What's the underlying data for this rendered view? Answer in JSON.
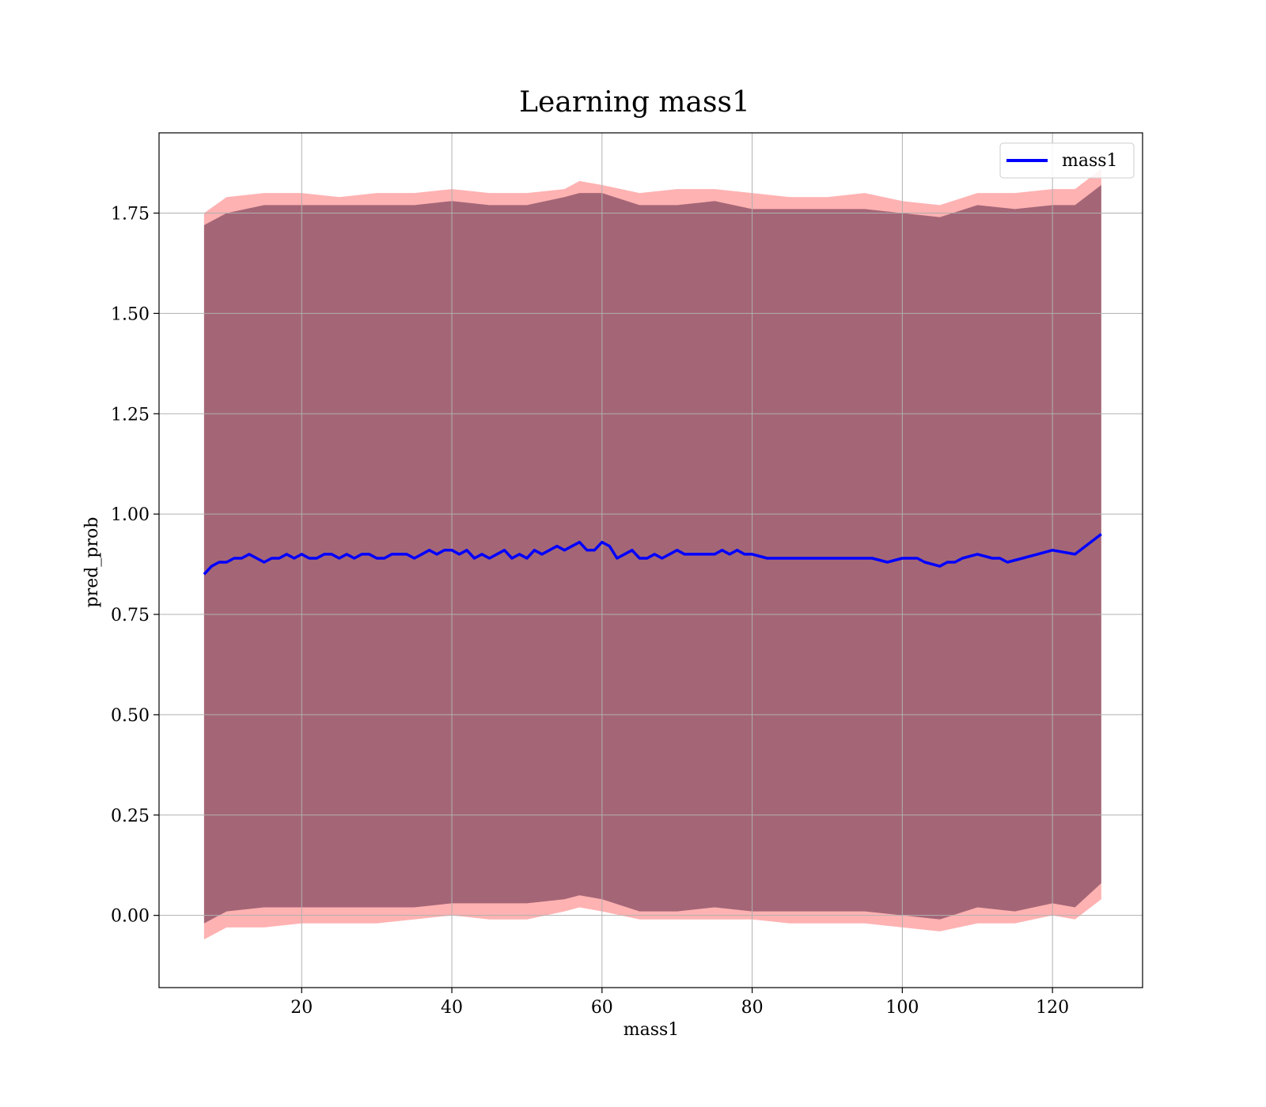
{
  "chart_data": {
    "type": "line",
    "title": "Learning mass1",
    "xlabel": "mass1",
    "ylabel": "pred_prob",
    "xlim": [
      1,
      132
    ],
    "ylim": [
      -0.18,
      1.95
    ],
    "xticks": [
      20,
      40,
      60,
      80,
      100,
      120
    ],
    "xtick_labels": [
      "20",
      "40",
      "60",
      "80",
      "100",
      "120"
    ],
    "yticks": [
      0.0,
      0.25,
      0.5,
      0.75,
      1.0,
      1.25,
      1.5,
      1.75
    ],
    "ytick_labels": [
      "0.00",
      "0.25",
      "0.50",
      "0.75",
      "1.00",
      "1.25",
      "1.50",
      "1.75"
    ],
    "grid": true,
    "legend_position": "top-right",
    "series": [
      {
        "name": "mass1",
        "color": "#0000ff",
        "x": [
          7,
          8,
          9,
          10,
          11,
          12,
          13,
          14,
          15,
          16,
          17,
          18,
          19,
          20,
          21,
          22,
          23,
          24,
          25,
          26,
          27,
          28,
          29,
          30,
          31,
          32,
          33,
          34,
          35,
          36,
          37,
          38,
          39,
          40,
          41,
          42,
          43,
          44,
          45,
          46,
          47,
          48,
          49,
          50,
          51,
          52,
          53,
          54,
          55,
          56,
          57,
          58,
          59,
          60,
          61,
          62,
          63,
          64,
          65,
          66,
          67,
          68,
          69,
          70,
          71,
          72,
          73,
          74,
          75,
          76,
          77,
          78,
          79,
          80,
          82,
          84,
          86,
          88,
          90,
          92,
          94,
          96,
          98,
          100,
          101,
          102,
          103,
          105,
          106,
          107,
          108,
          110,
          112,
          113,
          114,
          116,
          118,
          120,
          123,
          126.5
        ],
        "y": [
          0.85,
          0.87,
          0.88,
          0.88,
          0.89,
          0.89,
          0.9,
          0.89,
          0.88,
          0.89,
          0.89,
          0.9,
          0.89,
          0.9,
          0.89,
          0.89,
          0.9,
          0.9,
          0.89,
          0.9,
          0.89,
          0.9,
          0.9,
          0.89,
          0.89,
          0.9,
          0.9,
          0.9,
          0.89,
          0.9,
          0.91,
          0.9,
          0.91,
          0.91,
          0.9,
          0.91,
          0.89,
          0.9,
          0.89,
          0.9,
          0.91,
          0.89,
          0.9,
          0.89,
          0.91,
          0.9,
          0.91,
          0.92,
          0.91,
          0.92,
          0.93,
          0.91,
          0.91,
          0.93,
          0.92,
          0.89,
          0.9,
          0.91,
          0.89,
          0.89,
          0.9,
          0.89,
          0.9,
          0.91,
          0.9,
          0.9,
          0.9,
          0.9,
          0.9,
          0.91,
          0.9,
          0.91,
          0.9,
          0.9,
          0.89,
          0.89,
          0.89,
          0.89,
          0.89,
          0.89,
          0.89,
          0.89,
          0.88,
          0.89,
          0.89,
          0.89,
          0.88,
          0.87,
          0.88,
          0.88,
          0.89,
          0.9,
          0.89,
          0.89,
          0.88,
          0.89,
          0.9,
          0.91,
          0.9,
          0.95
        ]
      }
    ],
    "bands": [
      {
        "name": "red band",
        "color": "#ff6666",
        "x": [
          7,
          10,
          15,
          20,
          25,
          30,
          35,
          40,
          45,
          50,
          55,
          57,
          60,
          65,
          70,
          75,
          80,
          85,
          90,
          95,
          100,
          105,
          110,
          115,
          120,
          123,
          126.5
        ],
        "upper": [
          1.75,
          1.79,
          1.8,
          1.8,
          1.79,
          1.8,
          1.8,
          1.81,
          1.8,
          1.8,
          1.81,
          1.83,
          1.82,
          1.8,
          1.81,
          1.81,
          1.8,
          1.79,
          1.79,
          1.8,
          1.78,
          1.77,
          1.8,
          1.8,
          1.81,
          1.81,
          1.86
        ],
        "lower": [
          -0.06,
          -0.03,
          -0.03,
          -0.02,
          -0.02,
          -0.02,
          -0.01,
          0.0,
          -0.01,
          -0.01,
          0.01,
          0.02,
          0.01,
          -0.01,
          -0.01,
          -0.01,
          -0.01,
          -0.02,
          -0.02,
          -0.02,
          -0.03,
          -0.04,
          -0.02,
          -0.02,
          0.0,
          -0.01,
          0.04
        ]
      },
      {
        "name": "purple band",
        "color": "#5a2845",
        "x": [
          7,
          10,
          15,
          20,
          25,
          30,
          35,
          40,
          45,
          50,
          55,
          57,
          60,
          65,
          70,
          75,
          80,
          85,
          90,
          95,
          100,
          105,
          110,
          115,
          120,
          123,
          126.5
        ],
        "upper": [
          1.72,
          1.75,
          1.77,
          1.77,
          1.77,
          1.77,
          1.77,
          1.78,
          1.77,
          1.77,
          1.79,
          1.8,
          1.8,
          1.77,
          1.77,
          1.78,
          1.76,
          1.76,
          1.76,
          1.76,
          1.75,
          1.74,
          1.77,
          1.76,
          1.77,
          1.77,
          1.82
        ],
        "lower": [
          -0.02,
          0.01,
          0.02,
          0.02,
          0.02,
          0.02,
          0.02,
          0.03,
          0.03,
          0.03,
          0.04,
          0.05,
          0.04,
          0.01,
          0.01,
          0.02,
          0.01,
          0.01,
          0.01,
          0.01,
          0.0,
          -0.01,
          0.02,
          0.01,
          0.03,
          0.02,
          0.08
        ]
      }
    ]
  }
}
